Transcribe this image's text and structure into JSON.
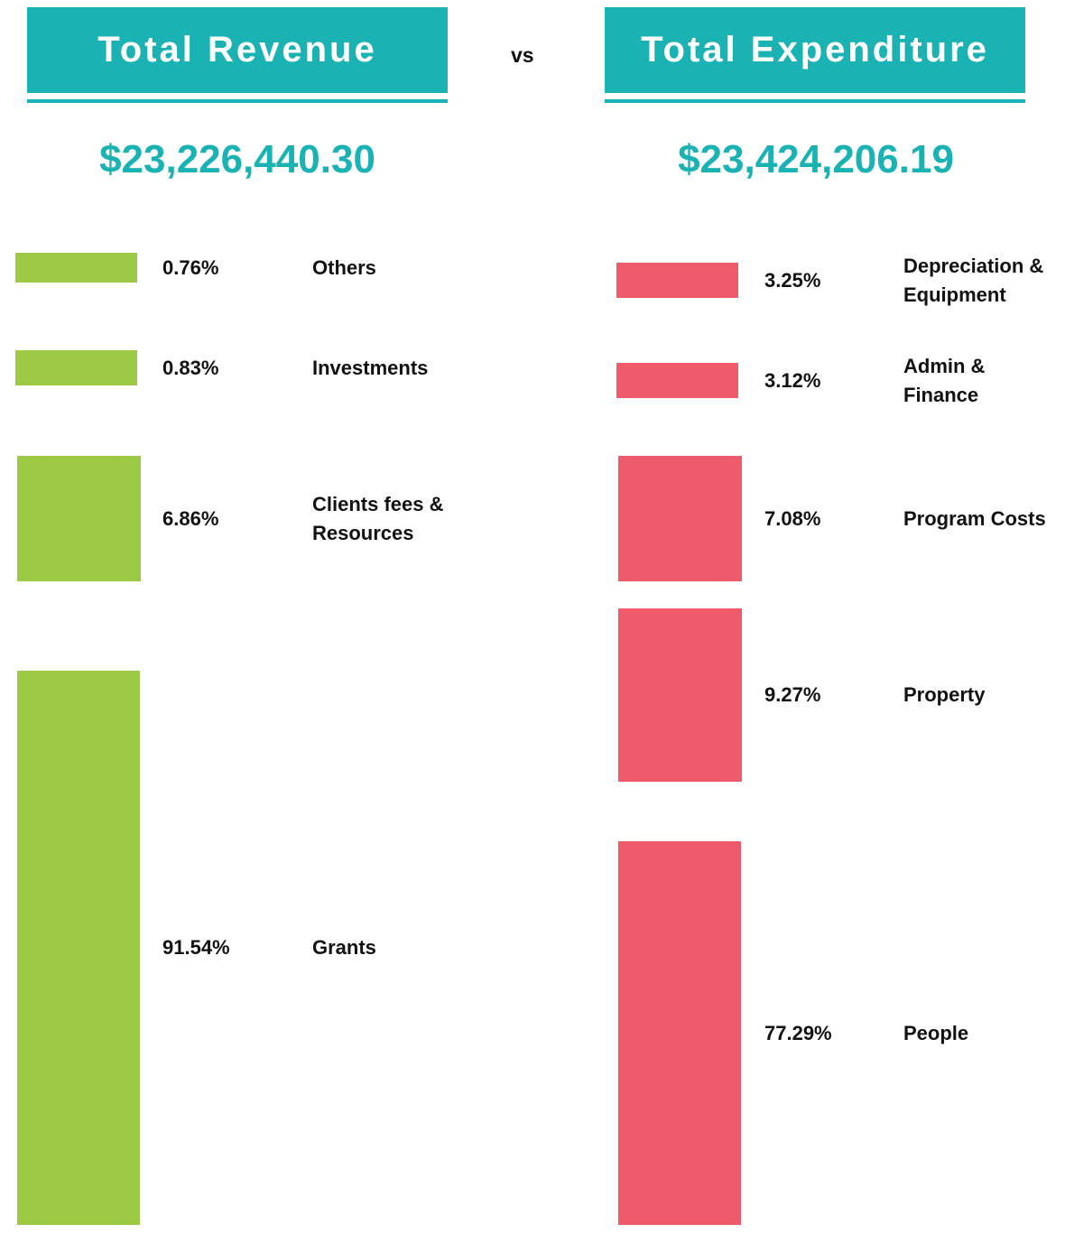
{
  "connector": "vs",
  "chart_data": [
    {
      "type": "bar",
      "title": "Total Revenue",
      "subtitle": "$23,226,440.30",
      "color": "#9dca45",
      "categories": [
        "Others",
        "Investments",
        "Clients fees & Resources",
        "Grants"
      ],
      "values": [
        0.76,
        0.83,
        6.86,
        91.54
      ],
      "value_labels": [
        "0.76%",
        "0.83%",
        "6.86%",
        "91.54%"
      ]
    },
    {
      "type": "bar",
      "title": "Total Expenditure",
      "subtitle": "$23,424,206.19",
      "color": "#ef5b6b",
      "categories": [
        "Depreciation & Equipment",
        "Admin & Finance",
        "Program Costs",
        "Property",
        "People"
      ],
      "values": [
        3.25,
        3.12,
        7.08,
        9.27,
        77.29
      ],
      "value_labels": [
        "3.25%",
        "3.12%",
        "7.08%",
        "9.27%",
        "77.29%"
      ]
    }
  ]
}
